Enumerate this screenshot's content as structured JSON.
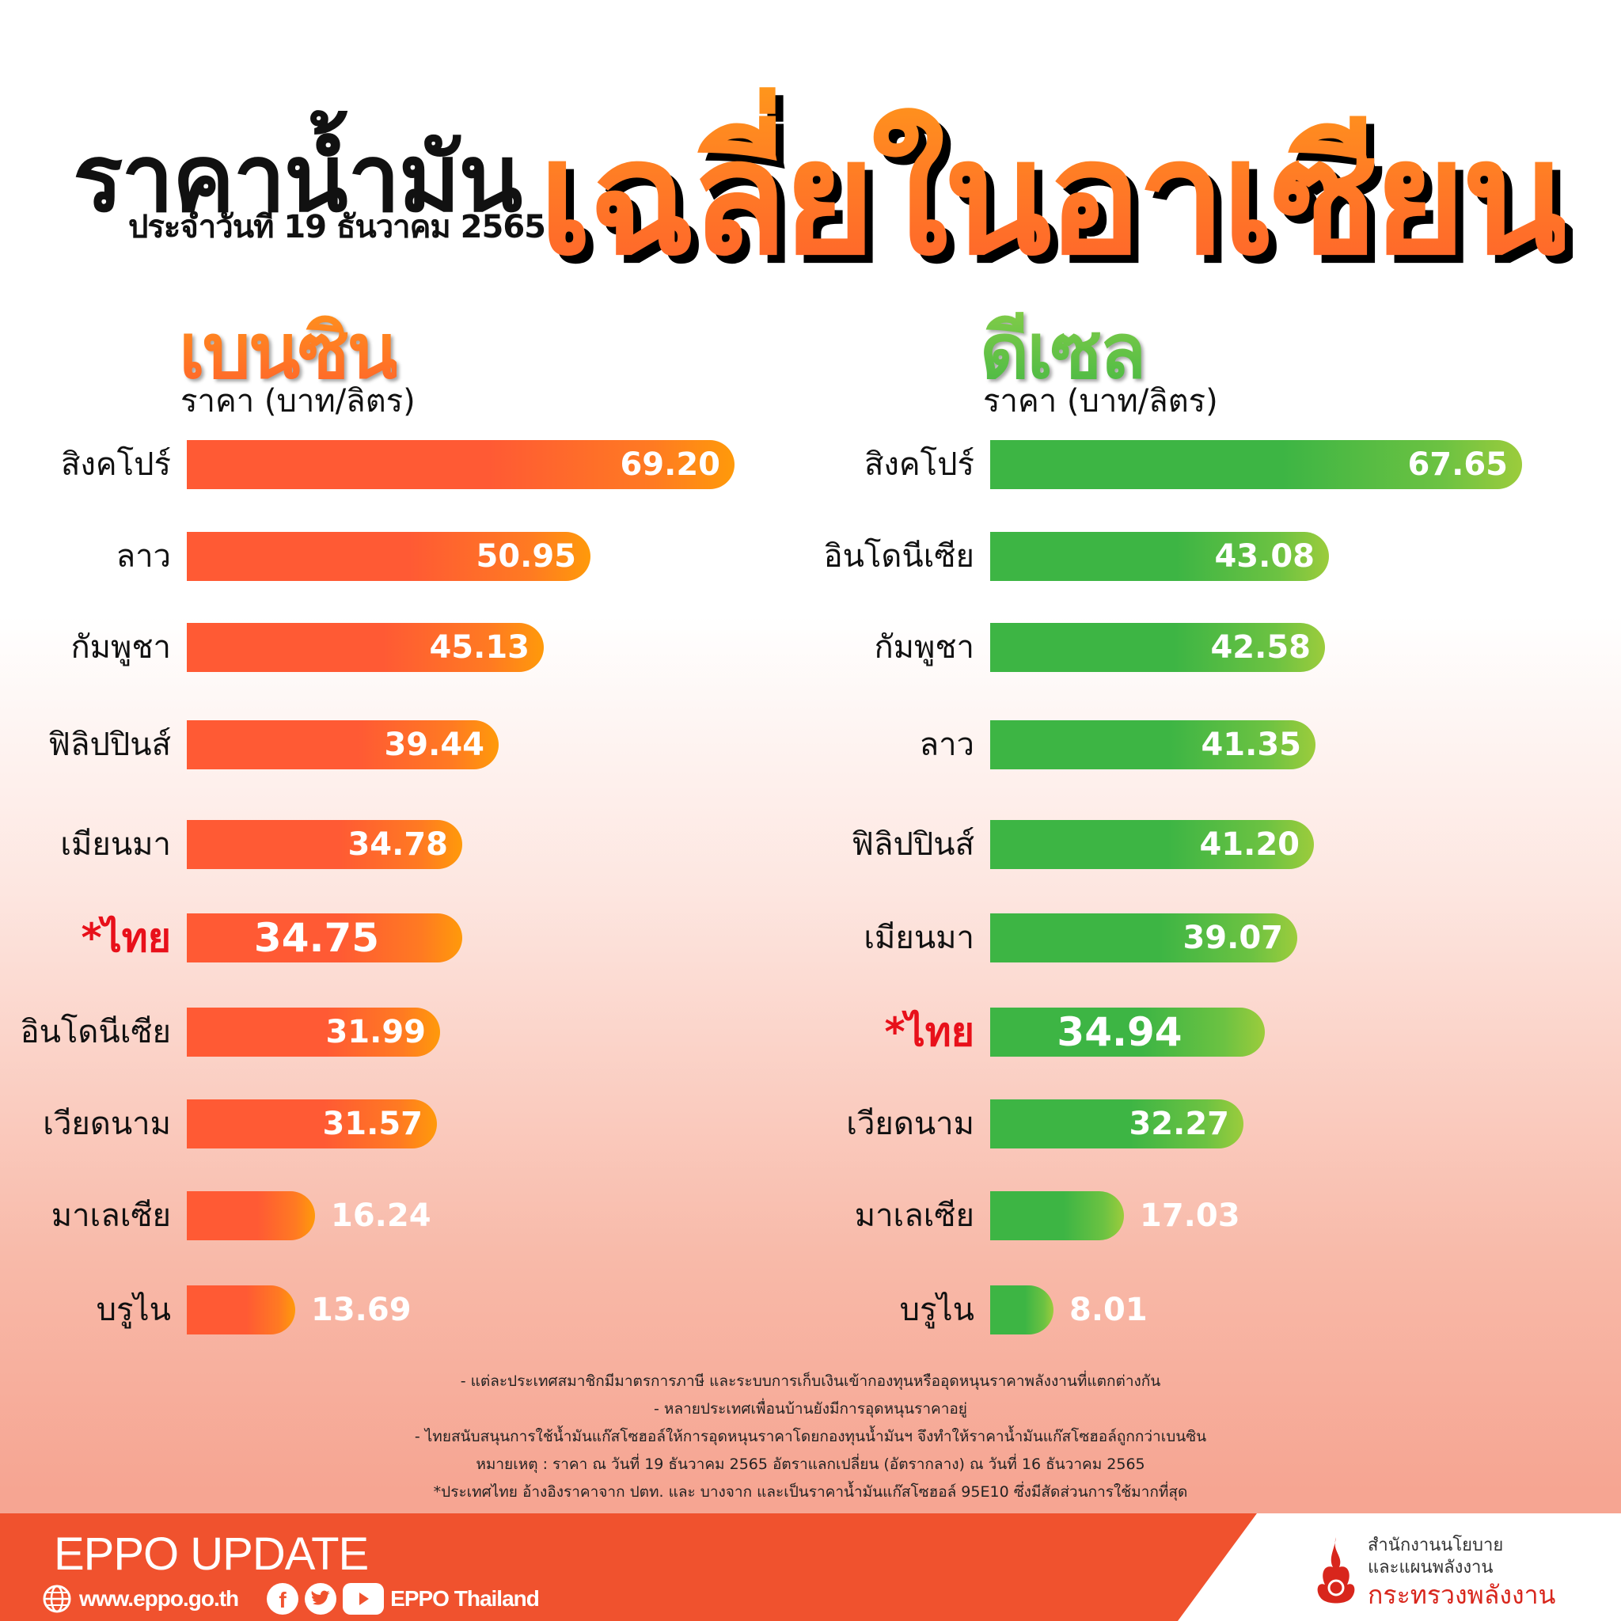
{
  "header": {
    "title_main": "ราคาน้ำมัน",
    "title_date": "ประจำวันที่ 19 ธันวาคม 2565",
    "title_highlight": "เฉลี่ยในอาเซียน"
  },
  "petrol": {
    "title": "เบนซิน",
    "unit": "ราคา (บาท/ลิตร)",
    "color_start": "#ff5a34",
    "color_end": "#ff9a0a",
    "rows": [
      {
        "label": "สิงคโปร์",
        "value": "69.20"
      },
      {
        "label": "ลาว",
        "value": "50.95"
      },
      {
        "label": "กัมพูชา",
        "value": "45.13"
      },
      {
        "label": "ฟิลิปปินส์",
        "value": "39.44"
      },
      {
        "label": "เมียนมา",
        "value": "34.78"
      },
      {
        "label": "*ไทย",
        "value": "34.75"
      },
      {
        "label": "อินโดนีเซีย",
        "value": "31.99"
      },
      {
        "label": "เวียดนาม",
        "value": "31.57"
      },
      {
        "label": "มาเลเซีย",
        "value": "16.24"
      },
      {
        "label": "บรูไน",
        "value": "13.69"
      }
    ]
  },
  "diesel": {
    "title": "ดีเซล",
    "unit": "ราคา (บาท/ลิตร)",
    "color_start": "#3db544",
    "color_end": "#9ccc3c",
    "rows": [
      {
        "label": "สิงคโปร์",
        "value": "67.65"
      },
      {
        "label": "อินโดนีเซีย",
        "value": "43.08"
      },
      {
        "label": "กัมพูชา",
        "value": "42.58"
      },
      {
        "label": "ลาว",
        "value": "41.35"
      },
      {
        "label": "ฟิลิปปินส์",
        "value": "41.20"
      },
      {
        "label": "เมียนมา",
        "value": "39.07"
      },
      {
        "label": "*ไทย",
        "value": "34.94"
      },
      {
        "label": "เวียดนาม",
        "value": "32.27"
      },
      {
        "label": "มาเลเซีย",
        "value": "17.03"
      },
      {
        "label": "บรูไน",
        "value": "8.01"
      }
    ]
  },
  "notes": [
    "- แต่ละประเทศสมาชิกมีมาตรการภาษี และระบบการเก็บเงินเข้ากองทุนหรืออุดหนุนราคาพลังงานที่แตกต่างกัน",
    "- หลายประเทศเพื่อนบ้านยังมีการอุดหนุนราคาอยู่",
    "- ไทยสนับสนุนการใช้น้ำมันแก๊สโซฮอล์ให้การอุดหนุนราคาโดยกองทุนน้ำมันฯ จึงทำให้ราคาน้ำมันแก๊สโซฮอล์ถูกกว่าเบนซิน",
    "หมายเหตุ :   ราคา ณ วันที่ 19 ธันวาคม 2565 อัตราแลกเปลี่ยน (อัตรากลาง) ณ วันที่ 16 ธันวาคม 2565",
    "*ประเทศไทย อ้างอิงราคาจาก ปตท. และ บางจาก และเป็นราคาน้ำมันแก๊สโซฮอล์ 95E10 ซึ่งมีสัดส่วนการใช้มากที่สุด"
  ],
  "footer": {
    "title": "EPPO UPDATE",
    "website": "www.eppo.go.th",
    "social_name": "EPPO Thailand",
    "icons": [
      "globe-icon",
      "facebook-icon",
      "twitter-icon",
      "youtube-icon"
    ],
    "ministry_line1": "สำนักงานนโยบาย",
    "ministry_line2": "และแผนพลังงาน",
    "ministry_line3": "กระทรวงพลังงาน",
    "bg_color": "#f0522e"
  },
  "chart_data": [
    {
      "type": "bar",
      "orientation": "horizontal",
      "title": "เบนซิน",
      "ylabel": "",
      "xlabel": "ราคา (บาท/ลิตร)",
      "categories": [
        "สิงคโปร์",
        "ลาว",
        "กัมพูชา",
        "ฟิลิปปินส์",
        "เมียนมา",
        "*ไทย",
        "อินโดนีเซีย",
        "เวียดนาม",
        "มาเลเซีย",
        "บรูไน"
      ],
      "values": [
        69.2,
        50.95,
        45.13,
        39.44,
        34.78,
        34.75,
        31.99,
        31.57,
        16.24,
        13.69
      ],
      "highlight": "*ไทย",
      "data_labels": true,
      "grid": false
    },
    {
      "type": "bar",
      "orientation": "horizontal",
      "title": "ดีเซล",
      "ylabel": "",
      "xlabel": "ราคา (บาท/ลิตร)",
      "categories": [
        "สิงคโปร์",
        "อินโดนีเซีย",
        "กัมพูชา",
        "ลาว",
        "ฟิลิปปินส์",
        "เมียนมา",
        "*ไทย",
        "เวียดนาม",
        "มาเลเซีย",
        "บรูไน"
      ],
      "values": [
        67.65,
        43.08,
        42.58,
        41.35,
        41.2,
        39.07,
        34.94,
        32.27,
        17.03,
        8.01
      ],
      "highlight": "*ไทย",
      "data_labels": true,
      "grid": false
    }
  ]
}
